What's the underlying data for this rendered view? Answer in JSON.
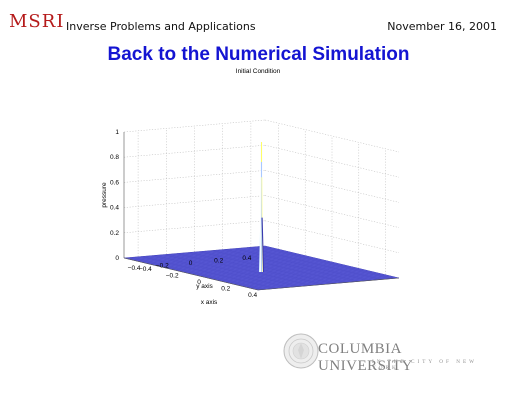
{
  "header": {
    "logo_text": "MSRI",
    "left_text": "Inverse Problems and Applications",
    "date": "November 16, 2001"
  },
  "slide": {
    "title": "Back to the Numerical Simulation"
  },
  "chart_data": {
    "type": "surface",
    "title": "Initial Condition",
    "zlabel": "pressure",
    "xlabel": "x axis",
    "ylabel": "y axis",
    "x_ticks": [
      "−0.4",
      "−0.2",
      "0",
      "0.2",
      "0.4"
    ],
    "y_ticks": [
      "−0.4",
      "−0.2",
      "0",
      "0.2",
      "0.4"
    ],
    "z_ticks": [
      "0",
      "0.2",
      "0.4",
      "0.6",
      "0.8",
      "1"
    ],
    "xlim": [
      -0.5,
      0.5
    ],
    "ylim": [
      -0.5,
      0.5
    ],
    "zlim": [
      0,
      1
    ],
    "peak": {
      "x": 0,
      "y": 0,
      "z": 1
    },
    "grid": true,
    "surface_color": "#5a5ad6"
  },
  "footer": {
    "university": "COLUMBIA UNIVERSITY",
    "subtitle": "IN THE CITY OF NEW YORK",
    "seal_icon": "columbia-seal-icon"
  }
}
